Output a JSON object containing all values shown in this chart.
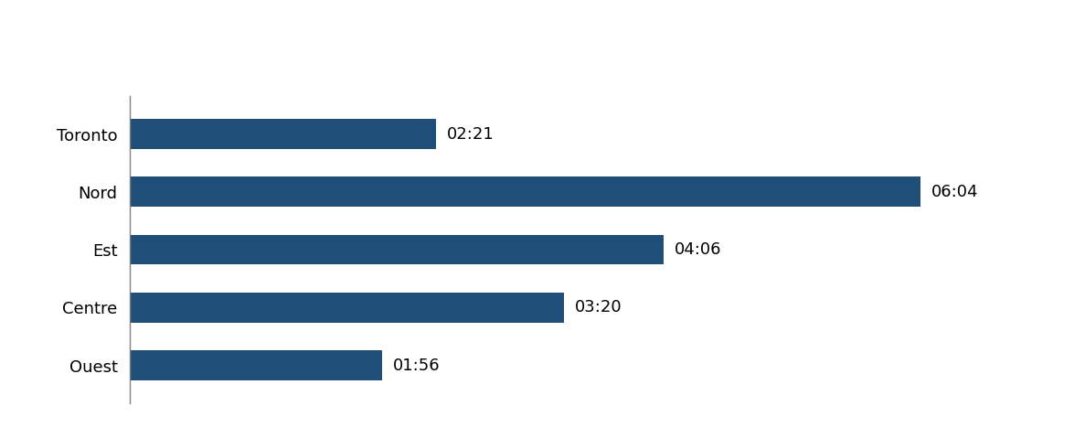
{
  "categories": [
    "Ouest",
    "Centre",
    "Est",
    "Nord",
    "Toronto"
  ],
  "values_minutes": [
    116,
    200,
    246,
    364,
    141
  ],
  "labels": [
    "01:56",
    "03:20",
    "04:06",
    "06:04",
    "02:21"
  ],
  "bar_color": "#1F4E79",
  "background_color": "#ffffff",
  "text_color": "#000000",
  "label_fontsize": 13,
  "tick_fontsize": 13,
  "bar_height": 0.52,
  "xlim": [
    0,
    400
  ],
  "spine_color": "#808080"
}
